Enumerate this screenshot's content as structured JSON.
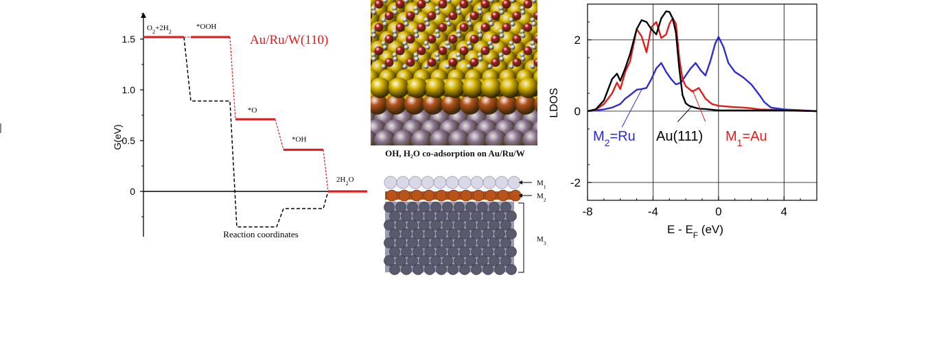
{
  "chart_data": [
    {
      "type": "line",
      "title": "Au/Ru/W(110)",
      "ylabel": "G(eV)",
      "xlabel": "Reaction coordinates",
      "ylim": [
        -0.45,
        1.8
      ],
      "yticks": [
        "1.5",
        "1.0",
        "0.5",
        "0"
      ],
      "ytick_values": [
        1.5,
        1.0,
        0.5,
        0
      ],
      "states": [
        "O2+2H2",
        "*OOH",
        "*O",
        "*OH",
        "2H2O"
      ],
      "state_labels": [
        "O₂+2H₂",
        "*OOH",
        "*O",
        "*OH",
        "2H₂O"
      ],
      "series": [
        {
          "name": "Au/Ru/W(110)",
          "color": "#e41a1a",
          "style": "solid",
          "values": [
            1.52,
            1.52,
            0.71,
            0.41,
            0.0
          ]
        },
        {
          "color": "#000000",
          "style": "dashed",
          "values": [
            1.52,
            0.89,
            -0.35,
            -0.17,
            0.0
          ]
        }
      ]
    },
    {
      "type": "line",
      "ylabel": "LDOS",
      "xlabel": "E - E",
      "xlabel_sub": "F",
      "xlabel_unit": " (eV)",
      "xlim": [
        -8,
        6
      ],
      "ylim": [
        -2.5,
        3.0
      ],
      "xticks": [
        -8,
        -4,
        0,
        4
      ],
      "yticks": [
        -2,
        0,
        2
      ],
      "grid": true,
      "series": [
        {
          "name": "Au(111)",
          "color": "#000000",
          "x": [
            -8,
            -7.5,
            -7,
            -6.5,
            -6.2,
            -6,
            -5.7,
            -5.4,
            -5,
            -4.7,
            -4.4,
            -4.1,
            -3.8,
            -3.5,
            -3.2,
            -3.0,
            -2.8,
            -2.6,
            -2.4,
            -2.2,
            -2.0,
            -1.8,
            -1.6,
            -1.2,
            -0.8,
            -0.4,
            0,
            1,
            2,
            4,
            6
          ],
          "y": [
            0,
            0.05,
            0.3,
            0.9,
            1.05,
            0.85,
            1.2,
            1.6,
            2.3,
            2.55,
            2.5,
            2.3,
            2.15,
            2.6,
            2.8,
            2.78,
            2.6,
            2.2,
            1.2,
            0.45,
            0.22,
            0.15,
            0.12,
            0.07,
            0.06,
            0.04,
            0.02,
            0.02,
            0.02,
            0.02,
            0
          ]
        },
        {
          "name": "M1=Au",
          "color": "#e41a1a",
          "x": [
            -8,
            -7.5,
            -7,
            -6.5,
            -6.2,
            -6,
            -5.7,
            -5.4,
            -5,
            -4.7,
            -4.4,
            -4.1,
            -3.8,
            -3.5,
            -3.2,
            -3.0,
            -2.8,
            -2.6,
            -2.4,
            -2.2,
            -2.0,
            -1.6,
            -1.2,
            -0.8,
            -0.4,
            0,
            0.8,
            1.5,
            2,
            2.5,
            4,
            6
          ],
          "y": [
            0,
            0.04,
            0.2,
            0.5,
            0.8,
            0.62,
            1.1,
            1.4,
            2.3,
            2.1,
            1.65,
            2.35,
            2.5,
            2.05,
            2.15,
            2.45,
            2.6,
            2.45,
            1.5,
            0.9,
            0.7,
            0.55,
            0.65,
            0.35,
            0.2,
            0.15,
            0.12,
            0.1,
            0.08,
            0.05,
            0.03,
            0
          ]
        },
        {
          "name": "M2=Ru",
          "color": "#2a2ad8",
          "x": [
            -8,
            -7.5,
            -7,
            -6.5,
            -6,
            -5.7,
            -5.4,
            -5,
            -4.7,
            -4.4,
            -4.1,
            -3.8,
            -3.5,
            -3.2,
            -2.9,
            -2.6,
            -2.3,
            -2.0,
            -1.7,
            -1.4,
            -1.1,
            -0.8,
            -0.5,
            -0.2,
            0,
            0.3,
            0.6,
            1,
            1.5,
            2,
            2.5,
            2.8,
            3.2,
            4,
            6
          ],
          "y": [
            0,
            0.02,
            0.05,
            0.1,
            0.2,
            0.35,
            0.45,
            0.6,
            0.62,
            0.65,
            0.9,
            1.2,
            1.35,
            1.1,
            0.9,
            0.75,
            0.8,
            1.0,
            1.2,
            1.35,
            1.15,
            1.0,
            1.4,
            1.9,
            2.08,
            1.8,
            1.35,
            1.1,
            0.95,
            0.75,
            0.45,
            0.25,
            0.1,
            0.05,
            0
          ]
        }
      ],
      "annotations": [
        {
          "text": "M",
          "sub": "2",
          "rest": "=Ru",
          "color": "#2a2ad8"
        },
        {
          "text": "Au(111)",
          "sub": "",
          "rest": "",
          "color": "#000000"
        },
        {
          "text": "M",
          "sub": "1",
          "rest": "=Au",
          "color": "#e41a1a"
        }
      ]
    }
  ],
  "figure_caption": "OH, H₂O co-adsorption on Au/Ru/W",
  "layer_labels": [
    "M",
    "M",
    "M"
  ],
  "layer_label_subs": [
    "1",
    "2",
    "3"
  ],
  "colors": {
    "gold": "#d9b800",
    "oxygen": "#b0182a",
    "hydrogen": "#c8d6e6",
    "ruthenium": "#b8541a",
    "tungsten": "#8f7a96",
    "substrate": "#5a5a6e",
    "top_layer": "#d8d8e6"
  }
}
